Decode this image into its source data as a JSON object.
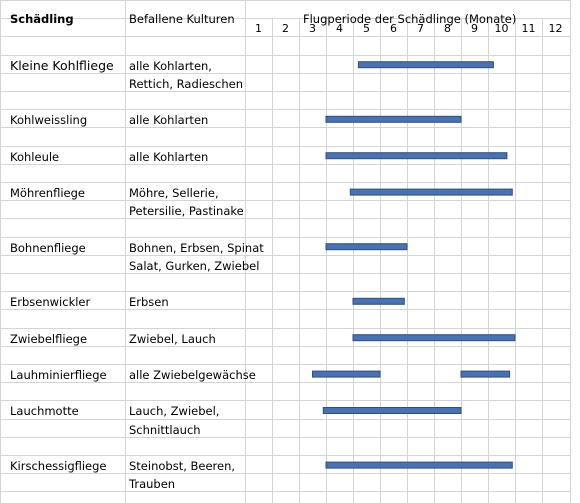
{
  "headers": {
    "pest": "Schädling",
    "crops": "Befallene Kulturen",
    "period": "Flugperiode der Schädlinge (Monate)"
  },
  "chart_data": {
    "type": "bar",
    "orientation": "horizontal-gantt",
    "x_ticks": [
      "1",
      "2",
      "3",
      "4",
      "5",
      "6",
      "7",
      "8",
      "9",
      "10",
      "11",
      "12"
    ],
    "xlim": [
      1,
      12
    ],
    "grid": true,
    "bar_color": "#4A72B0",
    "rows": [
      {
        "pest": "Kleine Kohlfliege",
        "crops": [
          "alle Kohlarten,",
          "Rettich, Radieschen"
        ],
        "periods": [
          [
            4.7,
            9.7
          ]
        ]
      },
      {
        "pest": "Kohlweissling",
        "crops": [
          "alle Kohlarten"
        ],
        "periods": [
          [
            3.5,
            8.5
          ]
        ]
      },
      {
        "pest": "Kohleule",
        "crops": [
          "alle Kohlarten"
        ],
        "periods": [
          [
            3.5,
            10.2
          ]
        ]
      },
      {
        "pest": "Möhrenfliege",
        "crops": [
          "Möhre, Sellerie,",
          "Petersilie, Pastinake"
        ],
        "periods": [
          [
            4.4,
            10.4
          ]
        ]
      },
      {
        "pest": "Bohnenfliege",
        "crops": [
          "Bohnen, Erbsen, Spinat",
          "Salat, Gurken, Zwiebel"
        ],
        "periods": [
          [
            3.5,
            6.5
          ]
        ]
      },
      {
        "pest": "Erbsenwickler",
        "crops": [
          "Erbsen"
        ],
        "periods": [
          [
            4.5,
            6.4
          ]
        ]
      },
      {
        "pest": "Zwiebelfliege",
        "crops": [
          "Zwiebel, Lauch"
        ],
        "periods": [
          [
            4.5,
            10.5
          ]
        ]
      },
      {
        "pest": "Lauhminierfliege",
        "crops": [
          "alle Zwiebelgewächse"
        ],
        "periods": [
          [
            3.0,
            5.5
          ],
          [
            8.5,
            10.3
          ]
        ]
      },
      {
        "pest": "Lauchmotte",
        "crops": [
          "Lauch, Zwiebel,",
          "Schnittlauch"
        ],
        "periods": [
          [
            3.4,
            8.5
          ]
        ]
      },
      {
        "pest": "Kirschessigfliege",
        "crops": [
          "Steinobst, Beeren,",
          "Trauben"
        ],
        "periods": [
          [
            3.5,
            10.4
          ]
        ]
      }
    ]
  }
}
